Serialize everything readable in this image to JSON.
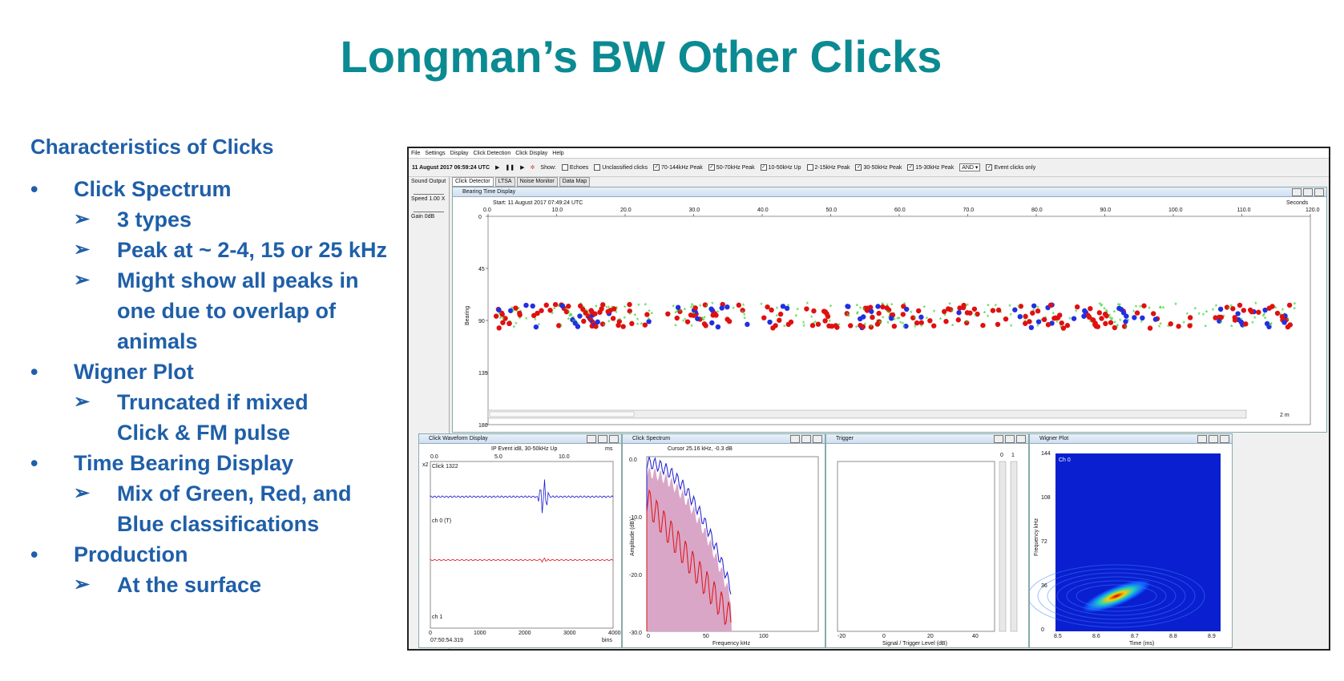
{
  "slide": {
    "title": "Longman’s BW Other Clicks",
    "heading": "Characteristics of Clicks",
    "items": [
      {
        "level": 1,
        "text": "Click Spectrum"
      },
      {
        "level": 2,
        "text": "3 types"
      },
      {
        "level": 2,
        "text": "Peak at ~ 2-4, 15 or 25 kHz"
      },
      {
        "level": 2,
        "text": "Might show all peaks in"
      },
      {
        "level": 3,
        "text": "one due to overlap of"
      },
      {
        "level": 3,
        "text": "animals"
      },
      {
        "level": 1,
        "text": "Wigner Plot"
      },
      {
        "level": 2,
        "text": "Truncated if mixed"
      },
      {
        "level": 3,
        "text": "Click & FM pulse"
      },
      {
        "level": 1,
        "text": "Time Bearing Display"
      },
      {
        "level": 2,
        "text": "Mix of Green, Red, and"
      },
      {
        "level": 3,
        "text": "Blue classifications"
      },
      {
        "level": 1,
        "text": "Production"
      },
      {
        "level": 2,
        "text": "At the surface"
      }
    ],
    "bullet_glyph": "•",
    "arrow_glyph": "➢"
  },
  "app": {
    "menu": [
      "File",
      "Settings",
      "Display",
      "Click Detection",
      "Click Display",
      "Help"
    ],
    "toolbar": {
      "date": "11 August 2017 06:59:24 UTC",
      "show_label": "Show:",
      "checks": [
        {
          "label": "Echoes",
          "checked": false
        },
        {
          "label": "Unclassified clicks",
          "checked": false
        },
        {
          "label": "70-144kHz Peak",
          "checked": true
        },
        {
          "label": "50-70kHz Peak",
          "checked": true
        },
        {
          "label": "10-50kHz Up",
          "checked": true
        },
        {
          "label": "2-15kHz Peak",
          "checked": false
        },
        {
          "label": "30-50kHz Peak",
          "checked": true
        },
        {
          "label": "15-30kHz Peak",
          "checked": true
        }
      ],
      "logic": "AND",
      "event_only": "Event clicks only"
    },
    "side": {
      "sound_output": "Sound Output",
      "speed": "Speed",
      "speed_val": "1.00 X",
      "gain": "Gain",
      "gain_val": "0dB"
    },
    "tabs": [
      "Click Detector",
      "LTSA",
      "Noise Monitor",
      "Data Map"
    ],
    "btd": {
      "title": "Bearing Time Display",
      "start": "Start: 11 August 2017 07:49:24 UTC",
      "seconds": "Seconds",
      "x_ticks": [
        "0.0",
        "10.0",
        "20.0",
        "30.0",
        "40.0",
        "50.0",
        "60.0",
        "70.0",
        "80.0",
        "90.0",
        "100.0",
        "110.0",
        "120.0"
      ],
      "y_ticks": [
        "0",
        "45",
        "90",
        "135",
        "180"
      ],
      "ylabel": "Bearing",
      "span": "2 m"
    },
    "waveform": {
      "title": "Click Waveform Display",
      "sub": "IP Event id8, 30-50kHz Up",
      "unit": "ms",
      "x_ticks": [
        "0.0",
        "5.0",
        "10.0"
      ],
      "scale": "x2",
      "click": "Click 1322",
      "ch0": "ch 0 (T)",
      "ch1": "ch 1",
      "time": "07:50:54.319",
      "bins": "bins",
      "bx_ticks": [
        "0",
        "1000",
        "2000",
        "3000",
        "4000"
      ]
    },
    "spectrum": {
      "title": "Click Spectrum",
      "cursor": "Cursor 25.16 kHz, -0.3 dB",
      "y_ticks": [
        "0.0",
        "-10.0",
        "-20.0",
        "-30.0"
      ],
      "ylabel": "Amplitude (dB)",
      "x_ticks": [
        "0",
        "50",
        "100"
      ],
      "xlabel": "Frequency kHz"
    },
    "trigger": {
      "title": "Trigger",
      "x_ticks": [
        "-20",
        "0",
        "20",
        "40"
      ],
      "xlabel": "Signal / Trigger Level (dB)",
      "meters": [
        "0",
        "1"
      ]
    },
    "wigner": {
      "title": "Wigner Plot",
      "ch": "Ch 0",
      "y_ticks": [
        "144",
        "108",
        "72",
        "36",
        "0"
      ],
      "ylabel": "Frequency kHz",
      "x_ticks": [
        "8.5",
        "8.6",
        "8.7",
        "8.8",
        "8.9"
      ],
      "xlabel": "Time (ms)"
    }
  },
  "colors": {
    "title": "#0b8a92",
    "text": "#1f5fa8",
    "green": "#2fd22f",
    "red": "#e01010",
    "blue": "#2230e0"
  }
}
